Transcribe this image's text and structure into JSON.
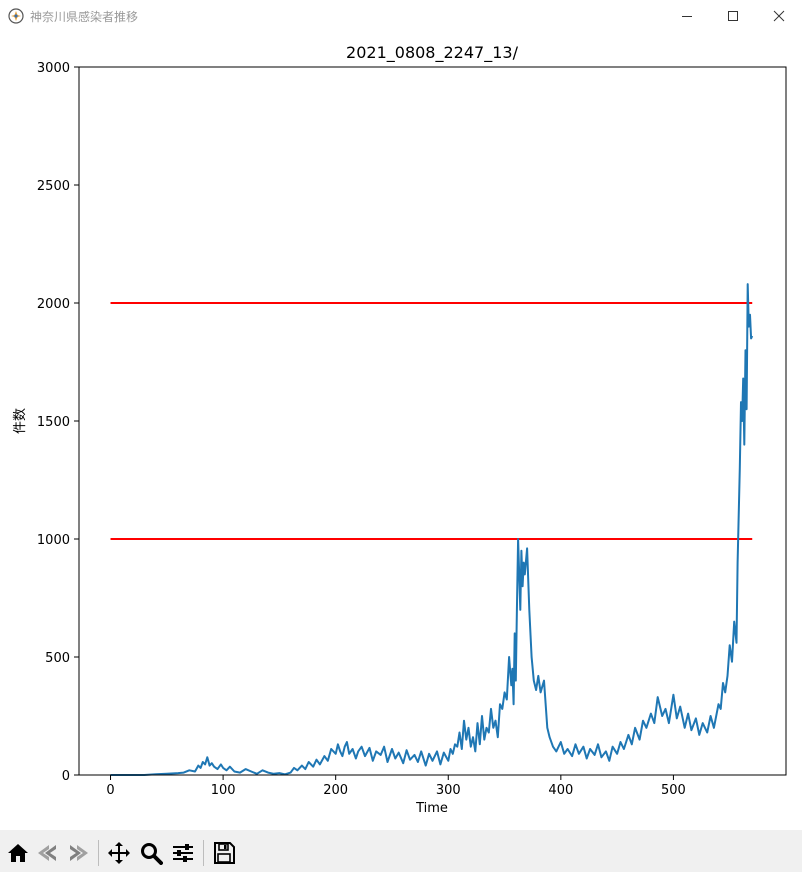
{
  "window": {
    "title": "神奈川県感染者推移"
  },
  "toolbar": {
    "buttons": [
      {
        "name": "home",
        "icon": "home-icon"
      },
      {
        "name": "back",
        "icon": "back-arrow-icon"
      },
      {
        "name": "forward",
        "icon": "forward-arrow-icon"
      },
      {
        "name": "pan",
        "icon": "move-arrows-icon"
      },
      {
        "name": "zoom",
        "icon": "magnifier-icon"
      },
      {
        "name": "configure",
        "icon": "sliders-icon"
      },
      {
        "name": "save",
        "icon": "floppy-disk-icon"
      }
    ]
  },
  "chart_data": {
    "type": "line",
    "title": "2021_0808_2247_13/",
    "xlabel": "Time",
    "ylabel": "件数",
    "xlim": [
      -28,
      600
    ],
    "ylim": [
      0,
      3000
    ],
    "xticks": [
      0,
      100,
      200,
      300,
      400,
      500
    ],
    "yticks": [
      0,
      500,
      1000,
      1500,
      2000,
      2500,
      3000
    ],
    "grid": false,
    "colors": {
      "series": "#1f77b4",
      "reference": "#ff0000"
    },
    "reference_lines": [
      {
        "y": 2000,
        "x": [
          0,
          570
        ]
      },
      {
        "y": 1000,
        "x": [
          0,
          570
        ]
      }
    ],
    "series": [
      {
        "x": [
          0,
          10,
          20,
          30,
          40,
          50,
          60,
          65,
          70,
          75,
          78,
          80,
          82,
          84,
          86,
          88,
          90,
          92,
          95,
          98,
          100,
          103,
          106,
          110,
          115,
          120,
          125,
          130,
          135,
          140,
          145,
          150,
          155,
          160,
          163,
          166,
          170,
          173,
          176,
          180,
          183,
          186,
          190,
          193,
          196,
          200,
          202,
          204,
          206,
          208,
          210,
          212,
          215,
          218,
          220,
          223,
          226,
          230,
          233,
          236,
          240,
          243,
          246,
          250,
          253,
          256,
          260,
          263,
          266,
          270,
          273,
          276,
          280,
          283,
          286,
          290,
          293,
          296,
          300,
          302,
          304,
          306,
          308,
          310,
          312,
          314,
          316,
          318,
          320,
          322,
          324,
          326,
          328,
          330,
          332,
          334,
          336,
          338,
          340,
          342,
          344,
          346,
          348,
          350,
          352,
          354,
          356,
          357,
          358,
          359,
          360,
          361,
          362,
          363,
          364,
          365,
          366,
          367,
          368,
          370,
          372,
          374,
          376,
          378,
          380,
          382,
          385,
          388,
          390,
          393,
          396,
          400,
          403,
          406,
          410,
          413,
          416,
          420,
          423,
          426,
          430,
          433,
          436,
          440,
          443,
          446,
          450,
          453,
          456,
          460,
          463,
          466,
          470,
          473,
          476,
          480,
          483,
          486,
          490,
          493,
          496,
          500,
          503,
          506,
          510,
          513,
          516,
          520,
          523,
          526,
          530,
          533,
          536,
          540,
          542,
          544,
          546,
          548,
          550,
          552,
          554,
          556,
          557,
          558,
          559,
          560,
          561,
          562,
          563,
          564,
          565,
          566,
          567,
          568,
          569,
          570
        ],
        "values": [
          0,
          0,
          0,
          0,
          3,
          5,
          8,
          10,
          20,
          15,
          40,
          30,
          55,
          45,
          75,
          40,
          50,
          35,
          25,
          45,
          30,
          20,
          35,
          15,
          10,
          25,
          15,
          5,
          20,
          10,
          5,
          8,
          3,
          10,
          30,
          20,
          40,
          25,
          55,
          35,
          65,
          45,
          80,
          60,
          110,
          90,
          130,
          100,
          80,
          120,
          140,
          90,
          110,
          70,
          100,
          120,
          80,
          115,
          60,
          100,
          85,
          120,
          55,
          110,
          70,
          95,
          50,
          105,
          65,
          85,
          55,
          100,
          40,
          90,
          60,
          100,
          45,
          95,
          60,
          110,
          90,
          130,
          120,
          180,
          110,
          230,
          150,
          200,
          120,
          160,
          100,
          220,
          130,
          250,
          150,
          200,
          180,
          280,
          200,
          230,
          160,
          300,
          280,
          350,
          320,
          500,
          380,
          450,
          300,
          600,
          400,
          700,
          1000,
          850,
          700,
          950,
          800,
          900,
          850,
          960,
          700,
          500,
          400,
          360,
          420,
          350,
          400,
          200,
          160,
          120,
          100,
          140,
          90,
          110,
          80,
          130,
          90,
          120,
          70,
          110,
          85,
          130,
          75,
          100,
          60,
          120,
          90,
          140,
          110,
          170,
          130,
          200,
          150,
          230,
          200,
          260,
          220,
          330,
          250,
          280,
          220,
          340,
          240,
          290,
          200,
          260,
          190,
          240,
          170,
          220,
          180,
          250,
          200,
          300,
          280,
          390,
          350,
          420,
          550,
          480,
          650,
          560,
          900,
          1100,
          1300,
          1580,
          1500,
          1680,
          1400,
          1800,
          1550,
          2080,
          1900,
          1950,
          1850,
          1860
        ]
      }
    ]
  }
}
